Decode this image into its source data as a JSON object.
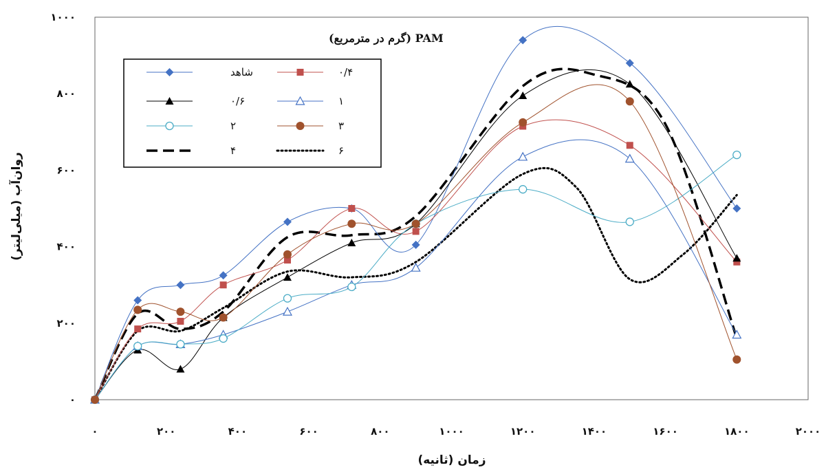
{
  "chart_data": {
    "type": "line",
    "xlabel": "زمان (ثانیه)",
    "ylabel": "روان‌آب (میلی‌لیتر)",
    "xlim": [
      0,
      2000
    ],
    "ylim": [
      0,
      1000
    ],
    "x_ticks": [
      0,
      200,
      400,
      600,
      800,
      1000,
      1200,
      1400,
      1600,
      1800,
      2000
    ],
    "x_tick_labels": [
      "۰",
      "۲۰۰",
      "۴۰۰",
      "۶۰۰",
      "۸۰۰",
      "۱۰۰۰",
      "۱۲۰۰",
      "۱۴۰۰",
      "۱۶۰۰",
      "۱۸۰۰",
      "۲۰۰۰"
    ],
    "y_ticks": [
      0,
      200,
      400,
      600,
      800,
      1000
    ],
    "y_tick_labels": [
      "۰",
      "۲۰۰",
      "۴۰۰",
      "۶۰۰",
      "۸۰۰",
      "۱۰۰۰"
    ],
    "grid": false,
    "legend": {
      "title": "PAM (گرم در مترمربع)",
      "placement": "top-left",
      "columns": 2
    },
    "x": [
      0,
      120,
      240,
      360,
      540,
      720,
      900,
      1200,
      1500,
      1800
    ],
    "series": [
      {
        "name": "شاهد",
        "color": "#4472C4",
        "marker": "diamond",
        "line": "solid",
        "values": [
          0,
          260,
          300,
          325,
          465,
          500,
          405,
          940,
          880,
          500
        ]
      },
      {
        "name": "۰/۴",
        "color": "#C0504D",
        "marker": "square",
        "line": "solid",
        "values": [
          0,
          185,
          205,
          300,
          365,
          500,
          440,
          715,
          665,
          360
        ]
      },
      {
        "name": "۰/۶",
        "color": "#000000",
        "marker": "triangle",
        "line": "solid",
        "values": [
          0,
          130,
          80,
          215,
          320,
          410,
          460,
          795,
          825,
          370
        ]
      },
      {
        "name": "۱",
        "color": "#4472C4",
        "marker": "triangle-open",
        "line": "solid",
        "values": [
          0,
          140,
          145,
          170,
          230,
          300,
          345,
          635,
          630,
          170
        ]
      },
      {
        "name": "۲",
        "color": "#4BACC6",
        "marker": "circle-open",
        "line": "solid",
        "values": [
          0,
          140,
          145,
          160,
          265,
          295,
          460,
          550,
          465,
          640
        ]
      },
      {
        "name": "۳",
        "color": "#A0522D",
        "marker": "circle",
        "line": "solid",
        "values": [
          0,
          235,
          230,
          215,
          380,
          460,
          460,
          725,
          780,
          105
        ]
      }
    ],
    "curves": [
      {
        "name": "۴",
        "color": "#000000",
        "line": "dashed",
        "x": [
          0,
          120,
          240,
          360,
          540,
          720,
          900,
          1200,
          1400,
          1600,
          1800
        ],
        "values": [
          0,
          225,
          185,
          230,
          425,
          430,
          480,
          820,
          850,
          720,
          160
        ]
      },
      {
        "name": "۶",
        "color": "#000000",
        "line": "dotted",
        "x": [
          0,
          120,
          240,
          360,
          540,
          720,
          900,
          1200,
          1350,
          1500,
          1650,
          1800
        ],
        "values": [
          0,
          180,
          180,
          240,
          335,
          320,
          360,
          590,
          555,
          315,
          380,
          535
        ]
      }
    ]
  }
}
